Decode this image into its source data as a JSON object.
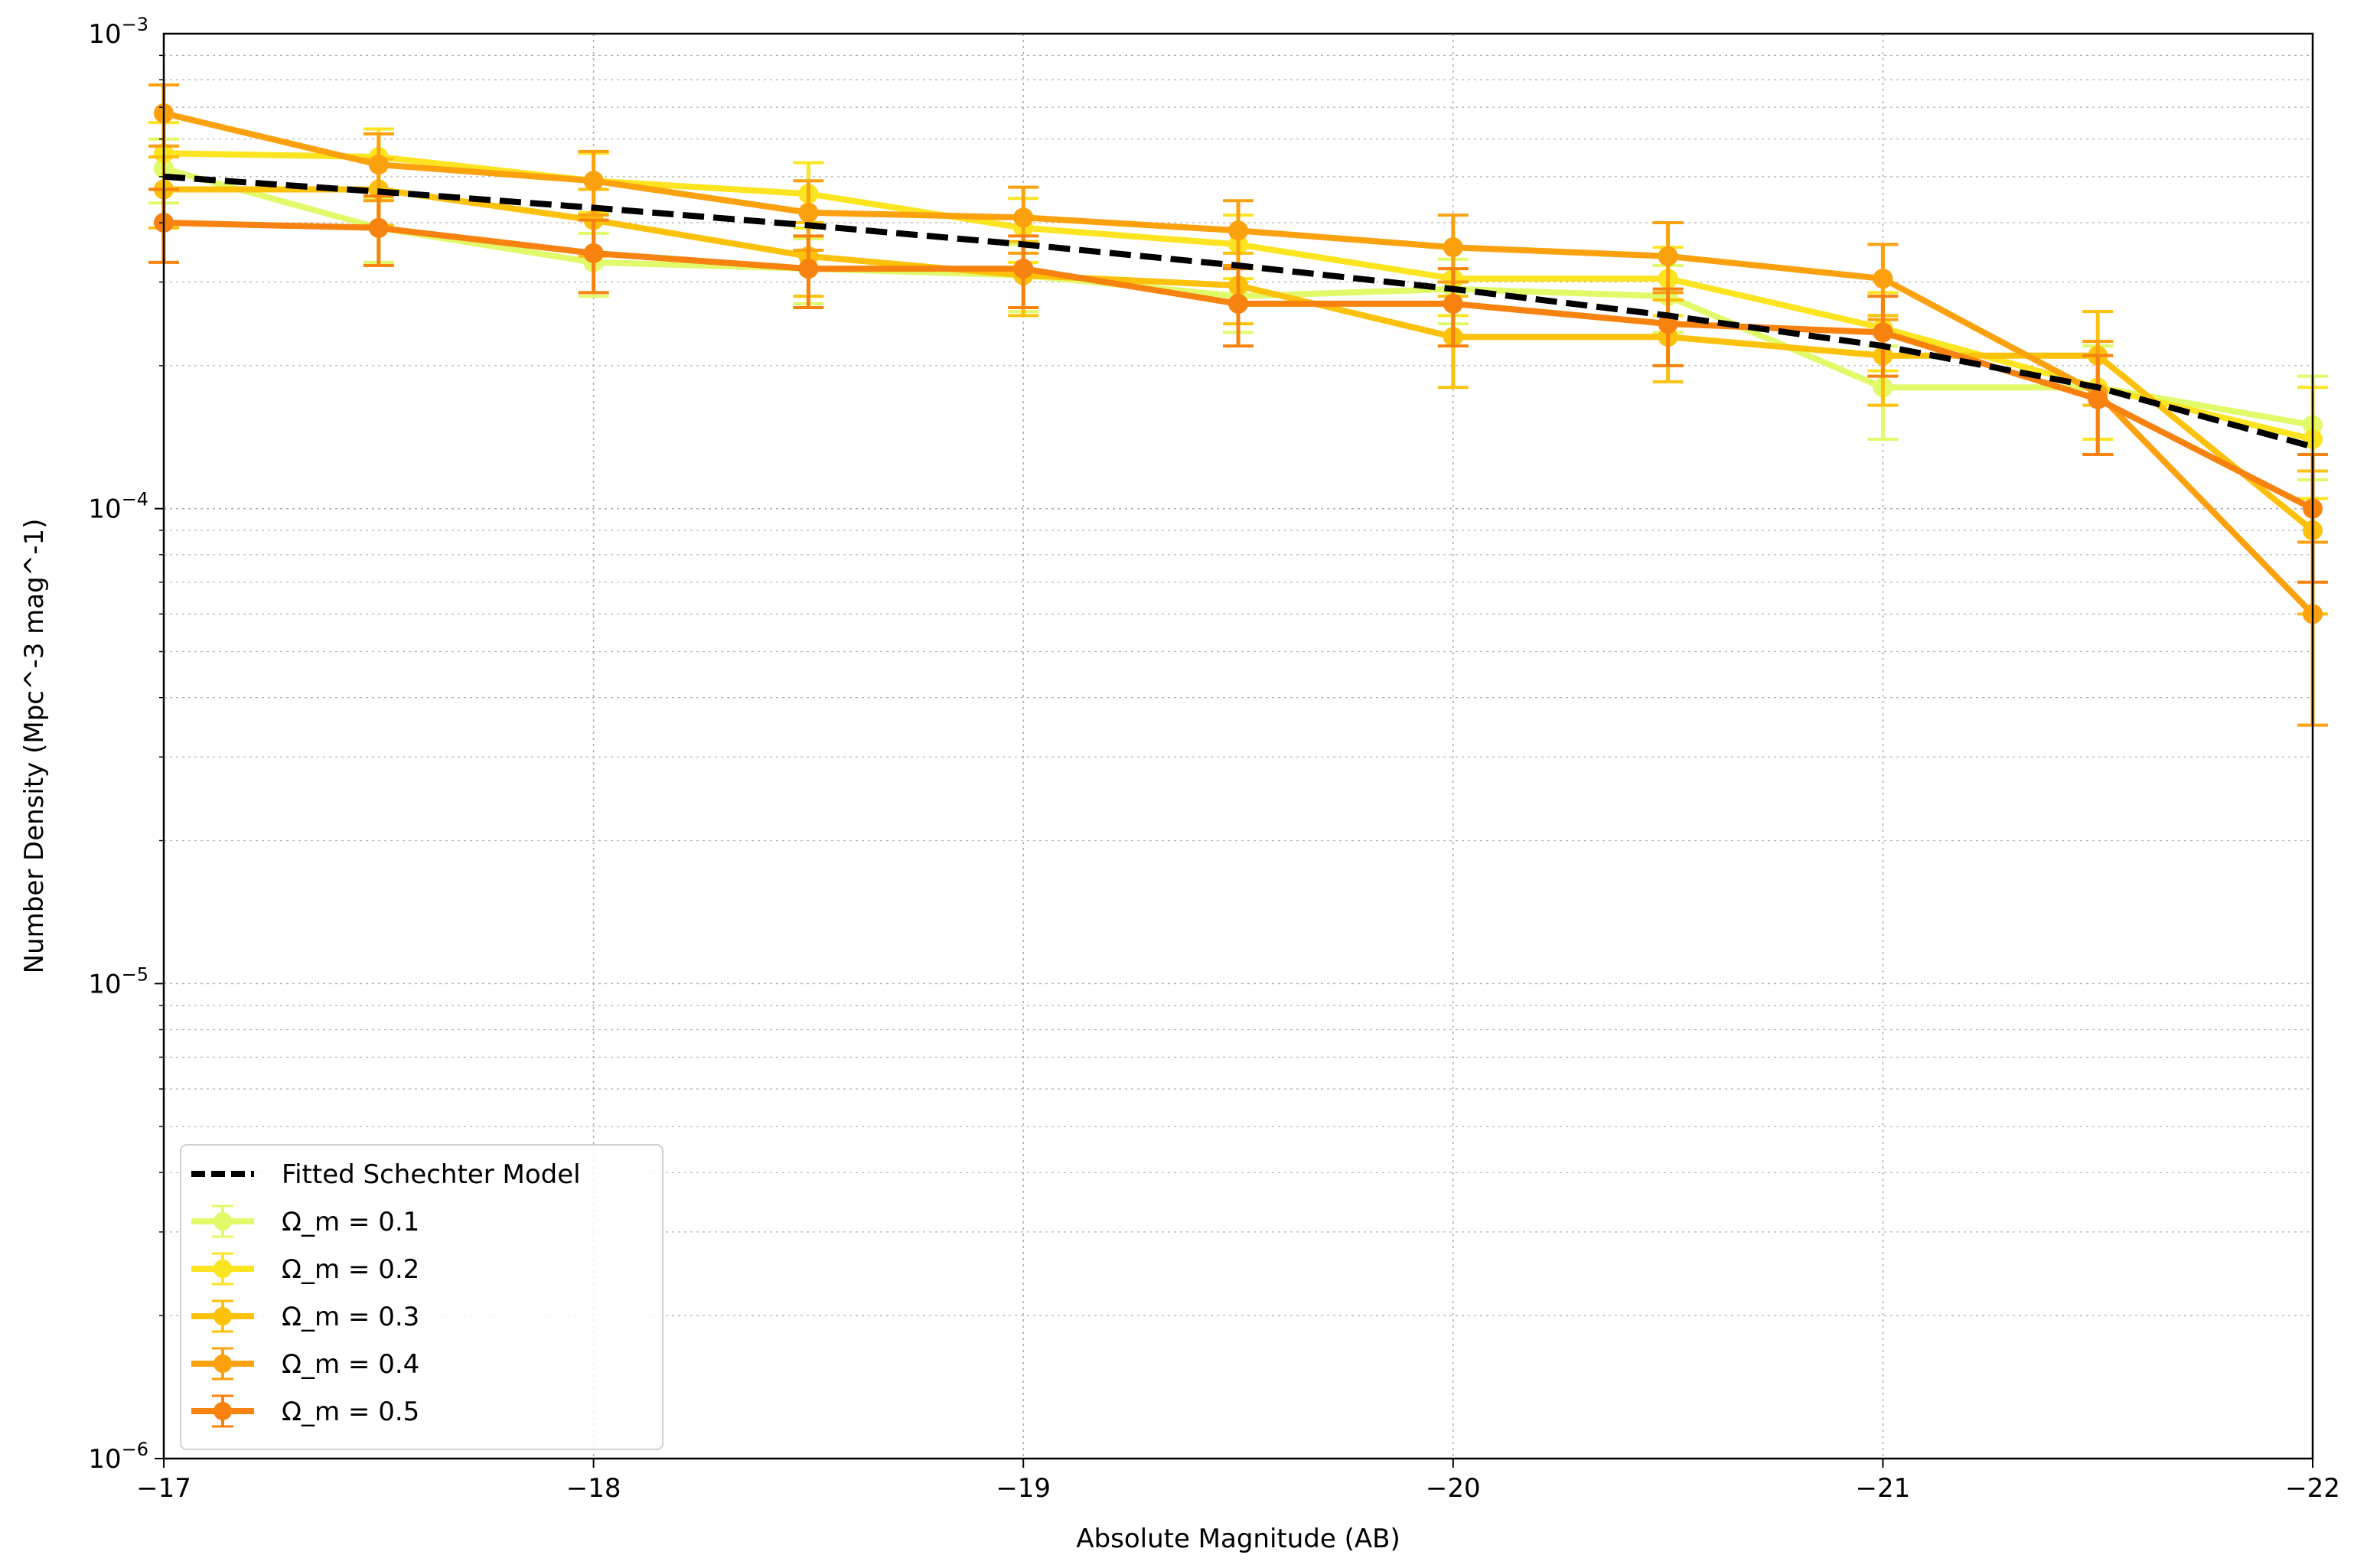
{
  "chart_data": {
    "type": "line",
    "title": "",
    "xlabel": "Absolute Magnitude (AB)",
    "ylabel": "Number Density (Mpc^-3 mag^-1)",
    "x_scale": "linear",
    "x_inverted": true,
    "xlim": [
      -17,
      -22
    ],
    "x_ticks": [
      -17,
      -18,
      -19,
      -20,
      -21,
      -22
    ],
    "x_tick_labels": [
      "−17",
      "−18",
      "−19",
      "−20",
      "−21",
      "−22"
    ],
    "y_scale": "log",
    "ylim": [
      1e-06,
      0.001
    ],
    "y_tick_labels": [
      {
        "value": 0.001,
        "base": "10",
        "exp": "−3"
      },
      {
        "value": 0.0001,
        "base": "10",
        "exp": "−4"
      },
      {
        "value": 1e-05,
        "base": "10",
        "exp": "−5"
      },
      {
        "value": 1e-06,
        "base": "10",
        "exp": "−6"
      }
    ],
    "grid": true,
    "legend_position": "lower-left",
    "x": [
      -17,
      -17.5,
      -18,
      -18.5,
      -19,
      -19.5,
      -20,
      -20.5,
      -21,
      -21.5,
      -22
    ],
    "model": {
      "name": "Fitted Schechter Model",
      "color": "#000000",
      "style": "dashed",
      "values": [
        0.0005,
        0.000465,
        0.00043,
        0.000395,
        0.00036,
        0.000325,
        0.00029,
        0.000255,
        0.00022,
        0.00018,
        0.000135
      ]
    },
    "series": [
      {
        "name": "Ω_m = 0.1",
        "color": "#e0fa6a",
        "values": [
          0.00052,
          0.00039,
          0.00033,
          0.00032,
          0.00031,
          0.00028,
          0.00029,
          0.00028,
          0.00018,
          0.00018,
          0.00015
        ],
        "err_low": [
          8e-05,
          6e-05,
          5e-05,
          5e-05,
          5e-05,
          4.5e-05,
          4.5e-05,
          4.5e-05,
          4e-05,
          4e-05,
          3.5e-05
        ],
        "err_high": [
          8e-05,
          6e-05,
          5e-05,
          5e-05,
          5e-05,
          4.5e-05,
          4.5e-05,
          4.5e-05,
          4e-05,
          4e-05,
          4e-05
        ]
      },
      {
        "name": "Ω_m = 0.2",
        "color": "#fce421",
        "values": [
          0.00056,
          0.00055,
          0.00049,
          0.00046,
          0.00039,
          0.00036,
          0.000305,
          0.000305,
          0.00024,
          0.00018,
          0.00014
        ],
        "err_low": [
          9e-05,
          8e-05,
          7e-05,
          7e-05,
          6e-05,
          5.5e-05,
          5e-05,
          5e-05,
          4.5e-05,
          4e-05,
          3.5e-05
        ],
        "err_high": [
          9e-05,
          8e-05,
          7e-05,
          7.5e-05,
          6e-05,
          5.5e-05,
          5e-05,
          5e-05,
          4.5e-05,
          4.5e-05,
          4e-05
        ]
      },
      {
        "name": "Ω_m = 0.3",
        "color": "#fcc10a",
        "values": [
          0.00047,
          0.00047,
          0.000405,
          0.00034,
          0.00031,
          0.000295,
          0.00023,
          0.00023,
          0.00021,
          0.00021,
          9e-05
        ],
        "err_low": [
          8e-05,
          7.5e-05,
          6.5e-05,
          6e-05,
          5.5e-05,
          5e-05,
          5e-05,
          4.5e-05,
          4.5e-05,
          4.5e-05,
          3e-05
        ],
        "err_high": [
          8e-05,
          7.5e-05,
          6.5e-05,
          6e-05,
          5.5e-05,
          5e-05,
          5e-05,
          4.5e-05,
          4.5e-05,
          5e-05,
          3e-05
        ]
      },
      {
        "name": "Ω_m = 0.4",
        "color": "#fba10e",
        "values": [
          0.00068,
          0.00053,
          0.00049,
          0.00042,
          0.00041,
          0.000385,
          0.000355,
          0.00034,
          0.000305,
          0.000175,
          6e-05
        ],
        "err_low": [
          0.0001,
          8.5e-05,
          7.5e-05,
          7e-05,
          6.5e-05,
          6e-05,
          5.5e-05,
          5.5e-05,
          5.5e-05,
          4.5e-05,
          2.5e-05
        ],
        "err_high": [
          0.0001,
          8.5e-05,
          7.5e-05,
          7e-05,
          6.5e-05,
          6e-05,
          6e-05,
          6e-05,
          5.5e-05,
          5e-05,
          2.5e-05
        ]
      },
      {
        "name": "Ω_m = 0.5",
        "color": "#f7820f",
        "values": [
          0.0004,
          0.00039,
          0.000345,
          0.00032,
          0.00032,
          0.00027,
          0.00027,
          0.000245,
          0.000235,
          0.00017,
          0.0001
        ],
        "err_low": [
          7e-05,
          6.5e-05,
          6e-05,
          5.5e-05,
          5.5e-05,
          5e-05,
          5e-05,
          4.5e-05,
          4.5e-05,
          4e-05,
          3e-05
        ],
        "err_high": [
          7e-05,
          6.5e-05,
          6e-05,
          5.5e-05,
          5.5e-05,
          5e-05,
          5e-05,
          4.5e-05,
          4.5e-05,
          4e-05,
          3e-05
        ]
      }
    ]
  }
}
